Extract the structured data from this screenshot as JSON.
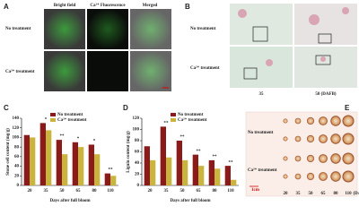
{
  "panels": {
    "A": {
      "label": "A",
      "columns": [
        "Bright field",
        "Ca²⁺ Fluorescence",
        "Merged"
      ],
      "rows": [
        "No treatment",
        "Ca²⁺ treatment"
      ]
    },
    "B": {
      "label": "B",
      "rows": [
        "No treatment",
        "Ca²⁺ treatment"
      ],
      "columns": [
        "35",
        "50 (DAFB)"
      ]
    },
    "E": {
      "label": "E",
      "rows": [
        "No treatment",
        "Ca²⁺ treatment"
      ],
      "columns": [
        "20",
        "35",
        "50",
        "65",
        "80",
        "110",
        "(DAFB)"
      ],
      "scale": "1cm"
    }
  },
  "chart_data": [
    {
      "type": "bar",
      "panel_label": "C",
      "ylabel": "Stone cell content (mg/g)",
      "xlabel": "Days after full bloom",
      "categories": [
        "20",
        "35",
        "50",
        "65",
        "80",
        "110"
      ],
      "series": [
        {
          "name": "No treatment",
          "color": "#8b1a1a",
          "values": [
            105,
            130,
            95,
            90,
            85,
            25
          ]
        },
        {
          "name": "Ca²⁺ treatment",
          "color": "#c9b43e",
          "values": [
            100,
            115,
            65,
            80,
            65,
            20
          ]
        }
      ],
      "significance": [
        null,
        "*",
        "**",
        "*",
        "*",
        "**"
      ],
      "ylim": [
        0,
        140
      ],
      "yticks": [
        0,
        20,
        40,
        60,
        80,
        100,
        120,
        140
      ],
      "legend": "upper center"
    },
    {
      "type": "bar",
      "panel_label": "D",
      "ylabel": "Lignin content (mg/g)",
      "xlabel": "Days after full bloom",
      "categories": [
        "20",
        "35",
        "50",
        "65",
        "80",
        "110"
      ],
      "series": [
        {
          "name": "No treatment",
          "color": "#8b1a1a",
          "values": [
            70,
            105,
            80,
            55,
            45,
            35
          ]
        },
        {
          "name": "Ca²⁺ treatment",
          "color": "#c9b43e",
          "values": [
            45,
            50,
            45,
            35,
            30,
            10
          ]
        }
      ],
      "significance": [
        null,
        "**",
        "**",
        "**",
        "**",
        "**"
      ],
      "ylim": [
        0,
        120
      ],
      "yticks": [
        0,
        20,
        40,
        60,
        80,
        100,
        120
      ],
      "legend": "upper center"
    }
  ]
}
